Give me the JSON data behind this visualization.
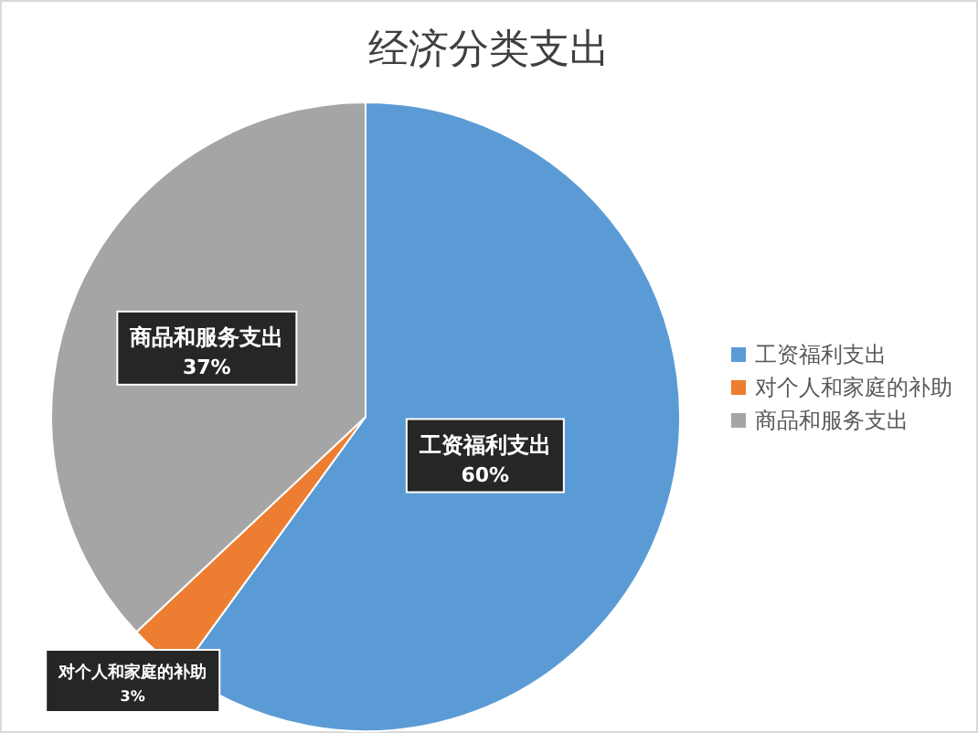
{
  "chart_data": {
    "type": "pie",
    "title": "经济分类支出",
    "categories": [
      "工资福利支出",
      "对个人和家庭的补助",
      "商品和服务支出"
    ],
    "values": [
      60,
      3,
      37
    ],
    "colors": [
      "#5b9bd5",
      "#ed7d31",
      "#a5a5a5"
    ],
    "value_labels": [
      "60%",
      "3%",
      "37%"
    ],
    "legend": "right"
  }
}
